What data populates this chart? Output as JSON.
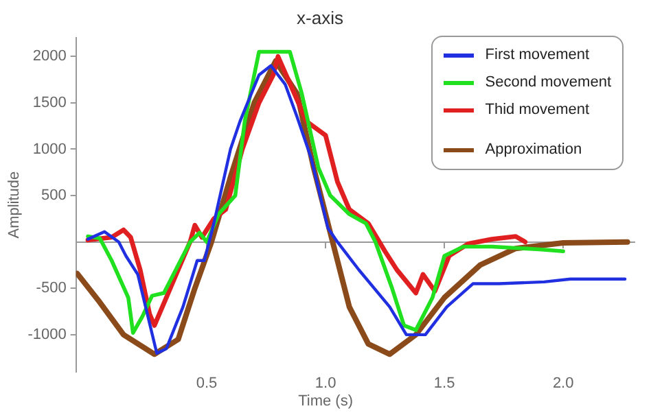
{
  "chart_data": {
    "type": "line",
    "title": "x-axis",
    "xlabel": "Time (s)",
    "ylabel": "Amplitude",
    "xlim": [
      -0.05,
      2.3
    ],
    "ylim": [
      -1400,
      2200
    ],
    "xticks": [
      0.5,
      {
        "value": 1,
        "label": "1.0"
      },
      1.5,
      {
        "value": 2,
        "label": "2.0"
      }
    ],
    "yticks": [
      -1000,
      -500,
      500,
      1000,
      1500,
      2000
    ],
    "grid": false,
    "legend": "top right",
    "marker": "none",
    "line_style": "solid",
    "series": [
      {
        "name": "First movement",
        "color": "#2030e0",
        "x": [
          0.0,
          0.07,
          0.13,
          0.16,
          0.21,
          0.29,
          0.33,
          0.4,
          0.46,
          0.49,
          0.53,
          0.6,
          0.64,
          0.72,
          0.77,
          0.83,
          0.88,
          0.94,
          1.01,
          1.05,
          1.14,
          1.27,
          1.34,
          1.42,
          1.51,
          1.62,
          1.73,
          1.92,
          2.03,
          2.26
        ],
        "values": [
          30,
          110,
          0,
          -150,
          -350,
          -1200,
          -1150,
          -700,
          -200,
          -200,
          200,
          1000,
          1300,
          1800,
          1900,
          1700,
          1350,
          900,
          150,
          0,
          -300,
          -700,
          -1000,
          -1000,
          -700,
          -450,
          -450,
          -430,
          -400,
          -400
        ]
      },
      {
        "name": "Second movement",
        "color": "#20e020",
        "x": [
          0.0,
          0.05,
          0.1,
          0.17,
          0.19,
          0.23,
          0.27,
          0.32,
          0.37,
          0.43,
          0.47,
          0.5,
          0.55,
          0.62,
          0.66,
          0.7,
          0.72,
          0.85,
          0.9,
          0.97,
          1.02,
          1.1,
          1.17,
          1.21,
          1.28,
          1.33,
          1.38,
          1.45,
          1.5,
          1.58,
          1.7,
          1.9,
          2.0
        ],
        "values": [
          60,
          40,
          -200,
          -600,
          -980,
          -800,
          -580,
          -550,
          -300,
          0,
          100,
          0,
          300,
          500,
          1300,
          1800,
          2050,
          2050,
          1600,
          800,
          500,
          300,
          200,
          0,
          -500,
          -900,
          -950,
          -600,
          -150,
          -50,
          -50,
          -80,
          -100
        ]
      },
      {
        "name": "Thid movement",
        "color": "#e02020",
        "x": [
          0.0,
          0.1,
          0.15,
          0.18,
          0.22,
          0.26,
          0.28,
          0.33,
          0.38,
          0.43,
          0.45,
          0.48,
          0.53,
          0.58,
          0.65,
          0.72,
          0.78,
          0.8,
          0.86,
          0.92,
          1.0,
          1.05,
          1.1,
          1.18,
          1.25,
          1.3,
          1.38,
          1.41,
          1.46,
          1.52,
          1.6,
          1.7,
          1.8,
          1.84
        ],
        "values": [
          20,
          50,
          130,
          50,
          -300,
          -780,
          -900,
          -600,
          -300,
          0,
          180,
          50,
          250,
          350,
          1000,
          1500,
          1800,
          2000,
          1650,
          1300,
          1150,
          650,
          350,
          200,
          -100,
          -300,
          -550,
          -350,
          -530,
          -150,
          -20,
          30,
          60,
          0
        ]
      },
      {
        "name": "Approximation",
        "color": "#8b4a1a",
        "x": [
          -0.045,
          0.05,
          0.15,
          0.28,
          0.38,
          0.45,
          0.52,
          0.6,
          0.7,
          0.79,
          0.88,
          0.95,
          1.03,
          1.1,
          1.18,
          1.27,
          1.38,
          1.5,
          1.65,
          1.8,
          2.0,
          2.27
        ],
        "values": [
          -340,
          -650,
          -1000,
          -1210,
          -1050,
          -500,
          0,
          700,
          1500,
          1950,
          1600,
          800,
          0,
          -700,
          -1100,
          -1210,
          -1000,
          -600,
          -250,
          -70,
          -10,
          0
        ]
      }
    ]
  }
}
